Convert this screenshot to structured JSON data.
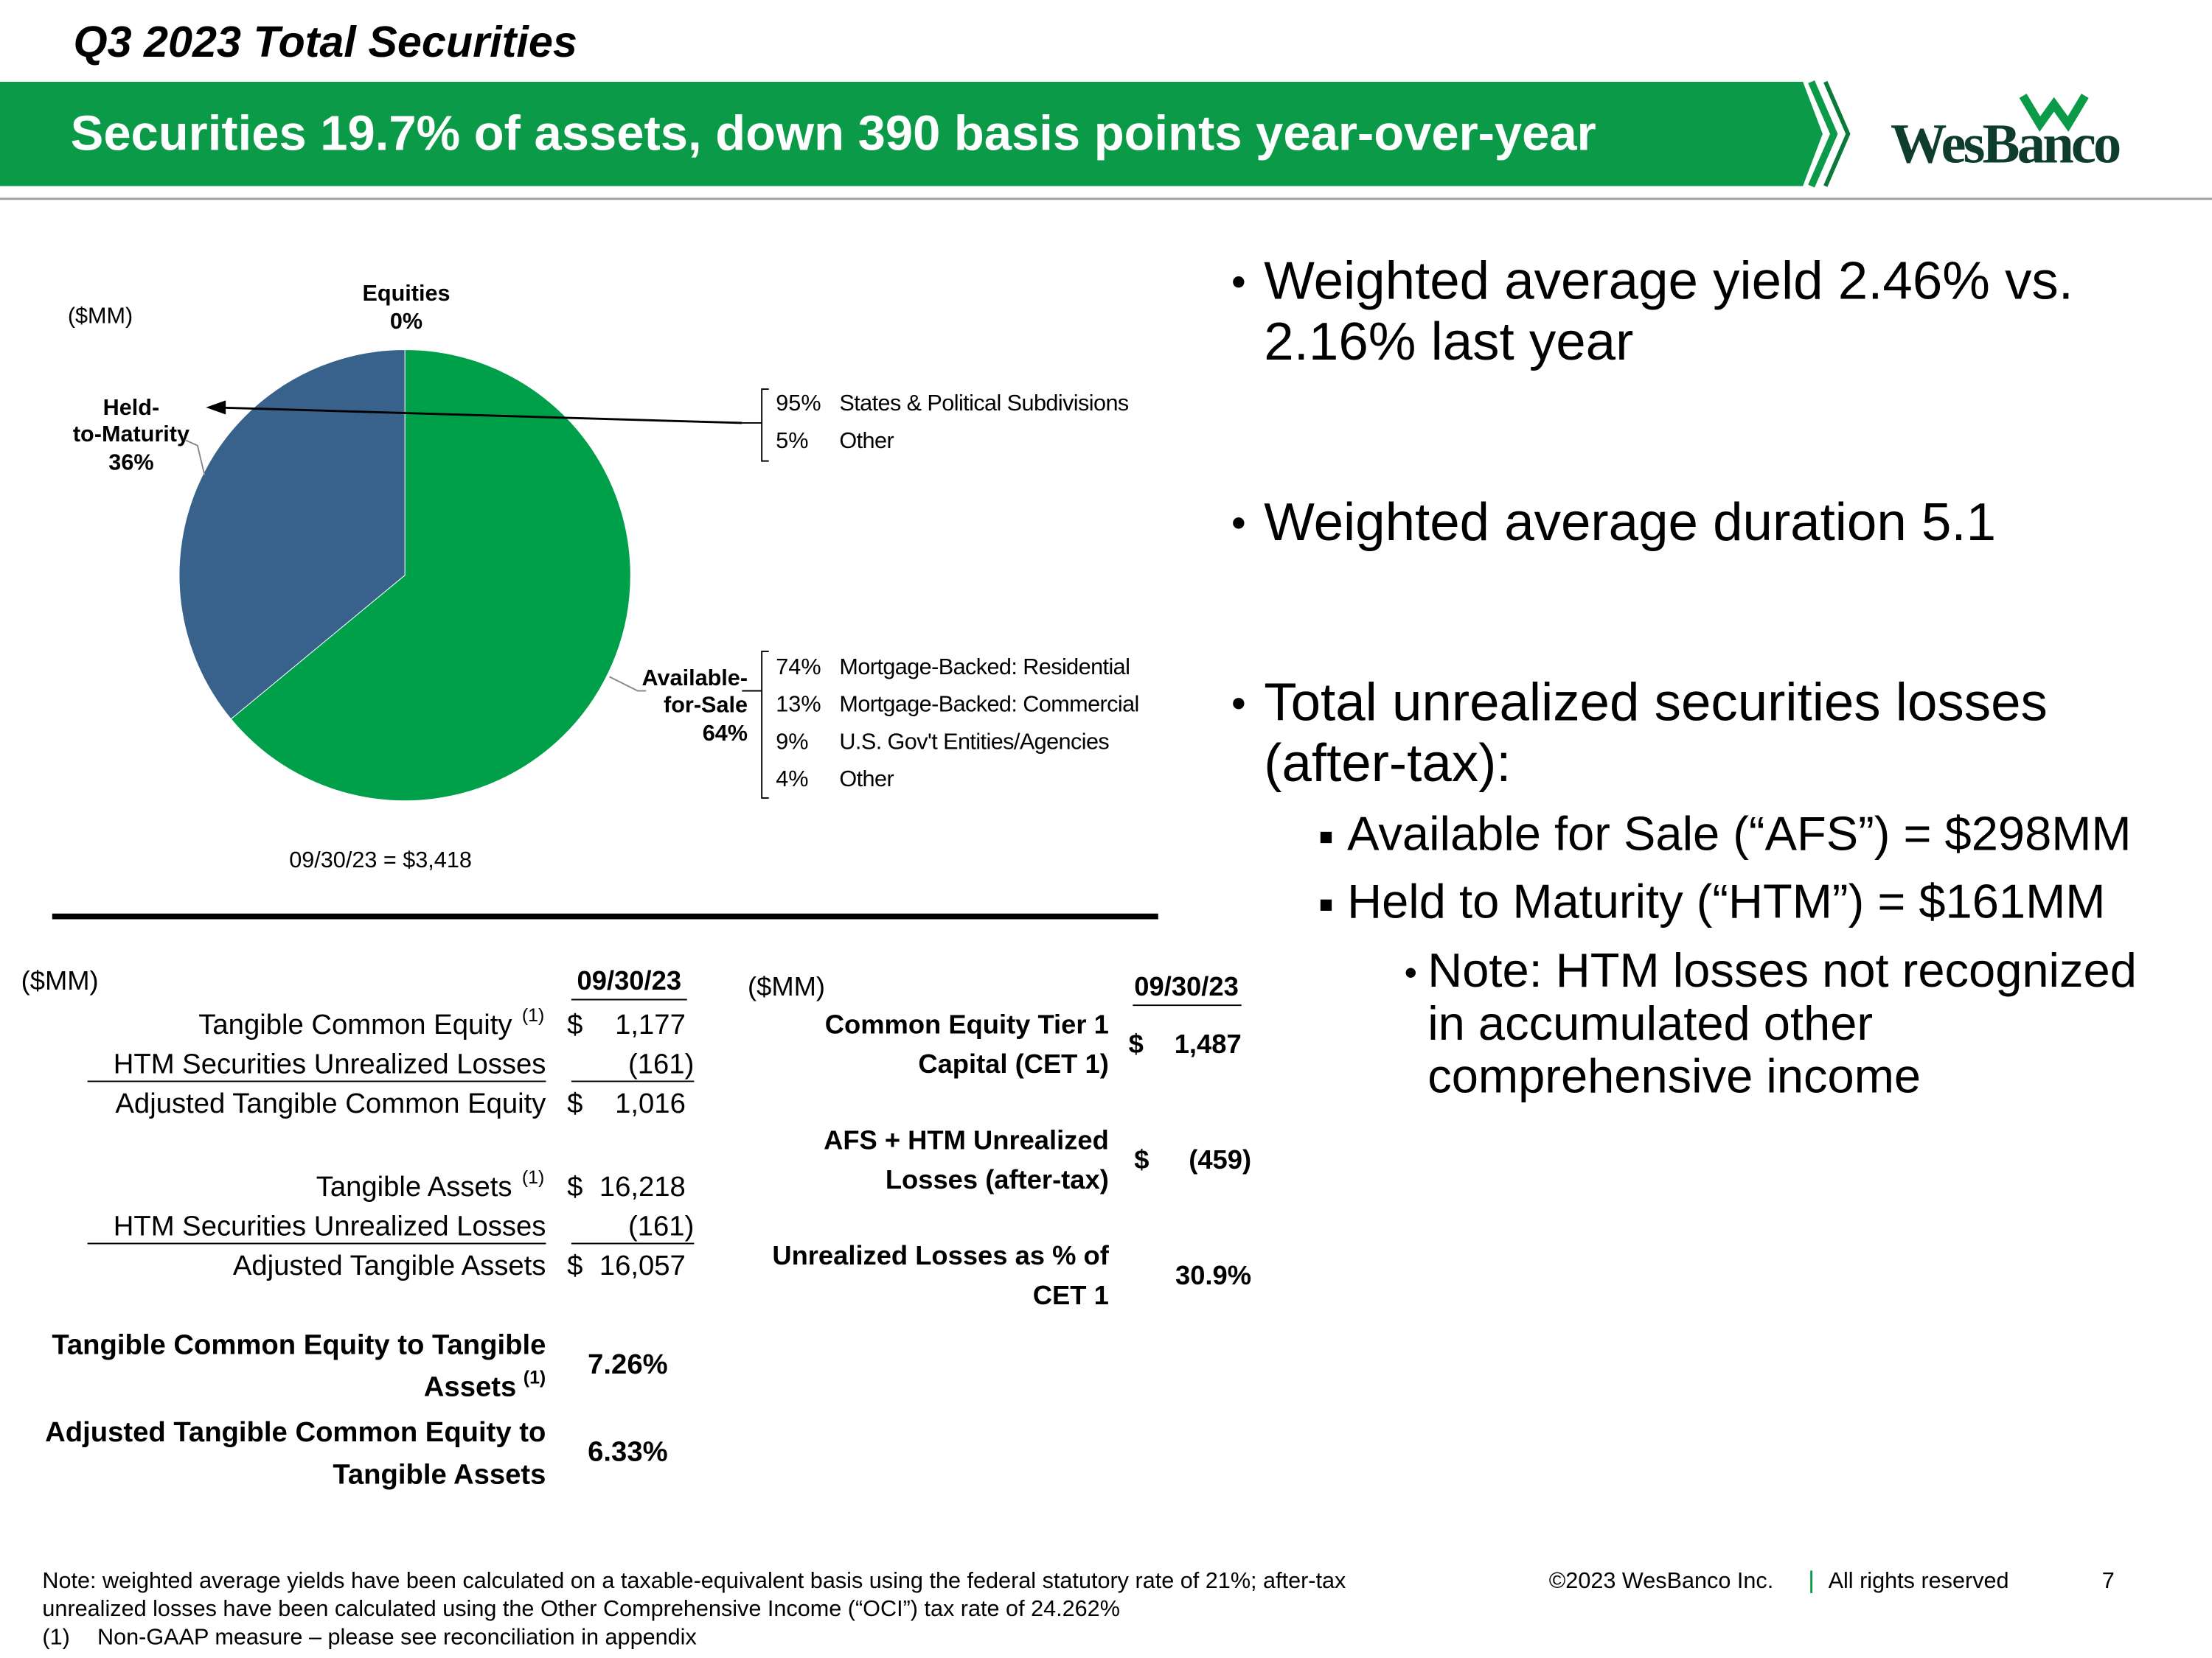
{
  "header": {
    "title": "Q3 2023 Total Securities",
    "banner": "Securities 19.7% of assets, down 390 basis points year-over-year",
    "logo": "WesBanco"
  },
  "chart_data": {
    "type": "pie",
    "unit": "($MM)",
    "categories": [
      "Equities",
      "Available-for-Sale",
      "Held-to-Maturity"
    ],
    "values": [
      0,
      64,
      36
    ],
    "value_labels": [
      "0%",
      "64%",
      "36%"
    ],
    "colors": [
      "#8c8c8c",
      "#00a04a",
      "#38618c"
    ],
    "total_label": "09/30/23  =  $3,418",
    "breakdowns": [
      {
        "items": [
          {
            "pct": "95%",
            "label": "States & Political Subdivisions"
          },
          {
            "pct": "5%",
            "label": "Other"
          }
        ]
      },
      {
        "items": [
          {
            "pct": "74%",
            "label": "Mortgage-Backed: Residential"
          },
          {
            "pct": "13%",
            "label": "Mortgage-Backed: Commercial"
          },
          {
            "pct": "9%",
            "label": "U.S. Gov't Entities/Agencies"
          },
          {
            "pct": "4%",
            "label": "Other"
          }
        ]
      }
    ]
  },
  "bullets": [
    {
      "lines": [
        "Weighted average yield 2.46% vs.",
        "2.16% last year"
      ]
    },
    {
      "lines": [
        "Weighted average duration 5.1"
      ]
    },
    {
      "lines": [
        "Total unrealized securities losses",
        "(after-tax):"
      ],
      "sub": [
        {
          "text": "Available for Sale (“AFS”) = $298MM"
        },
        {
          "text": "Held to Maturity (“HTM”) = $161MM",
          "sub": [
            {
              "lines": [
                "Note: HTM losses not recognized",
                "in accumulated other",
                "comprehensive income"
              ]
            }
          ]
        }
      ]
    }
  ],
  "left_table": {
    "unit": "($MM)",
    "column": "09/30/23",
    "rows": [
      {
        "label": "Tangible Common Equity",
        "note": "(1)",
        "currency": "$",
        "value": "1,177"
      },
      {
        "label": "HTM Securities Unrealized Losses",
        "value": "(161)"
      },
      {
        "label": "Adjusted Tangible Common Equity",
        "currency": "$",
        "value": "1,016"
      },
      {
        "label": "Tangible Assets",
        "note": "(1)",
        "currency": "$",
        "value": "16,218"
      },
      {
        "label": "HTM Securities Unrealized Losses",
        "value": "(161)"
      },
      {
        "label": "Adjusted Tangible Assets",
        "currency": "$",
        "value": "16,057"
      }
    ],
    "ratios": [
      {
        "lines": [
          "Tangible Common Equity to Tangible",
          "Assets"
        ],
        "note": "(1)",
        "value": "7.26%"
      },
      {
        "lines": [
          "Adjusted Tangible Common Equity to",
          "Tangible Assets"
        ],
        "value": "6.33%"
      }
    ]
  },
  "right_table": {
    "unit": "($MM)",
    "column": "09/30/23",
    "rows": [
      {
        "lines": [
          "Common Equity Tier 1",
          "Capital (CET 1)"
        ],
        "currency": "$",
        "value": "1,487"
      },
      {
        "lines": [
          "AFS + HTM Unrealized",
          "Losses (after-tax)"
        ],
        "currency": "$",
        "value": "(459)"
      },
      {
        "lines": [
          "Unrealized Losses as % of",
          "CET 1"
        ],
        "value": "30.9%"
      }
    ]
  },
  "footer": {
    "notes": [
      "Note: weighted average yields have been calculated on a taxable-equivalent basis using the federal statutory rate of 21%; after-tax",
      "unrealized losses have been calculated using the Other Comprehensive Income (“OCI”) tax rate of 24.262%"
    ],
    "footnote": {
      "mark": "(1)",
      "text": "Non-GAAP measure – please see reconciliation in appendix"
    },
    "copyright": "©2023 WesBanco Inc.",
    "rights": "All rights reserved",
    "page": "7"
  }
}
